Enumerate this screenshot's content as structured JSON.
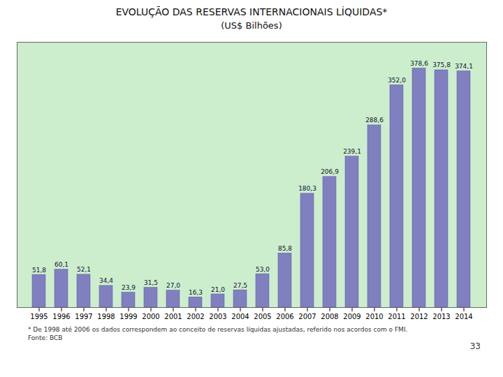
{
  "chart_data": {
    "type": "bar",
    "title": "EVOLUÇÃO DAS RESERVAS INTERNACIONAIS LÍQUIDAS*",
    "subtitle": "(US$ Bilhões)",
    "categories": [
      "1995",
      "1996",
      "1997",
      "1998",
      "1999",
      "2000",
      "2001",
      "2002",
      "2003",
      "2004",
      "2005",
      "2006",
      "2007",
      "2008",
      "2009",
      "2010",
      "2011",
      "2012",
      "2013",
      "2014"
    ],
    "values": [
      51.8,
      60.1,
      52.1,
      34.4,
      23.9,
      31.5,
      27.0,
      16.3,
      21.0,
      27.5,
      53.0,
      85.8,
      180.3,
      206.9,
      239.1,
      288.6,
      352.0,
      378.6,
      375.8,
      374.1
    ],
    "value_labels": [
      "51,8",
      "60,1",
      "52,1",
      "34,4",
      "23,9",
      "31,5",
      "27,0",
      "16,3",
      "21,0",
      "27,5",
      "53,0",
      "85,8",
      "180,3",
      "206,9",
      "239,1",
      "288,6",
      "352,0",
      "378,6",
      "375,8",
      "374,1"
    ],
    "data_labels": true,
    "color": "#8080C0",
    "ylim": [
      0,
      420
    ],
    "yticks": [],
    "tick_labels": "x",
    "grid": false,
    "annotations": [
      "* De 1998 até 2006 os dados correspondem ao conceito de reservas líquidas ajustadas, referido nos acordos com o FMI.",
      "Fonte: BCB",
      "33"
    ]
  }
}
